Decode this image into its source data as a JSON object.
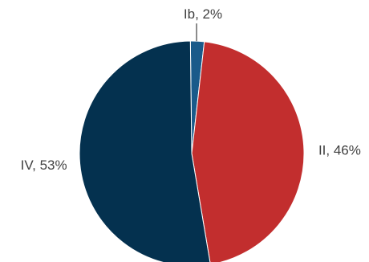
{
  "chart_data": {
    "type": "pie",
    "title": "",
    "legend": "none",
    "slices": [
      {
        "label": "Ib",
        "value": 2,
        "display": "Ib, 2%",
        "color": "#1a5a8a"
      },
      {
        "label": "II",
        "value": 46,
        "display": "II, 46%",
        "color": "#c22e2e"
      },
      {
        "label": "IV",
        "value": 53,
        "display": "IV, 53%",
        "color": "#04314f"
      }
    ]
  }
}
